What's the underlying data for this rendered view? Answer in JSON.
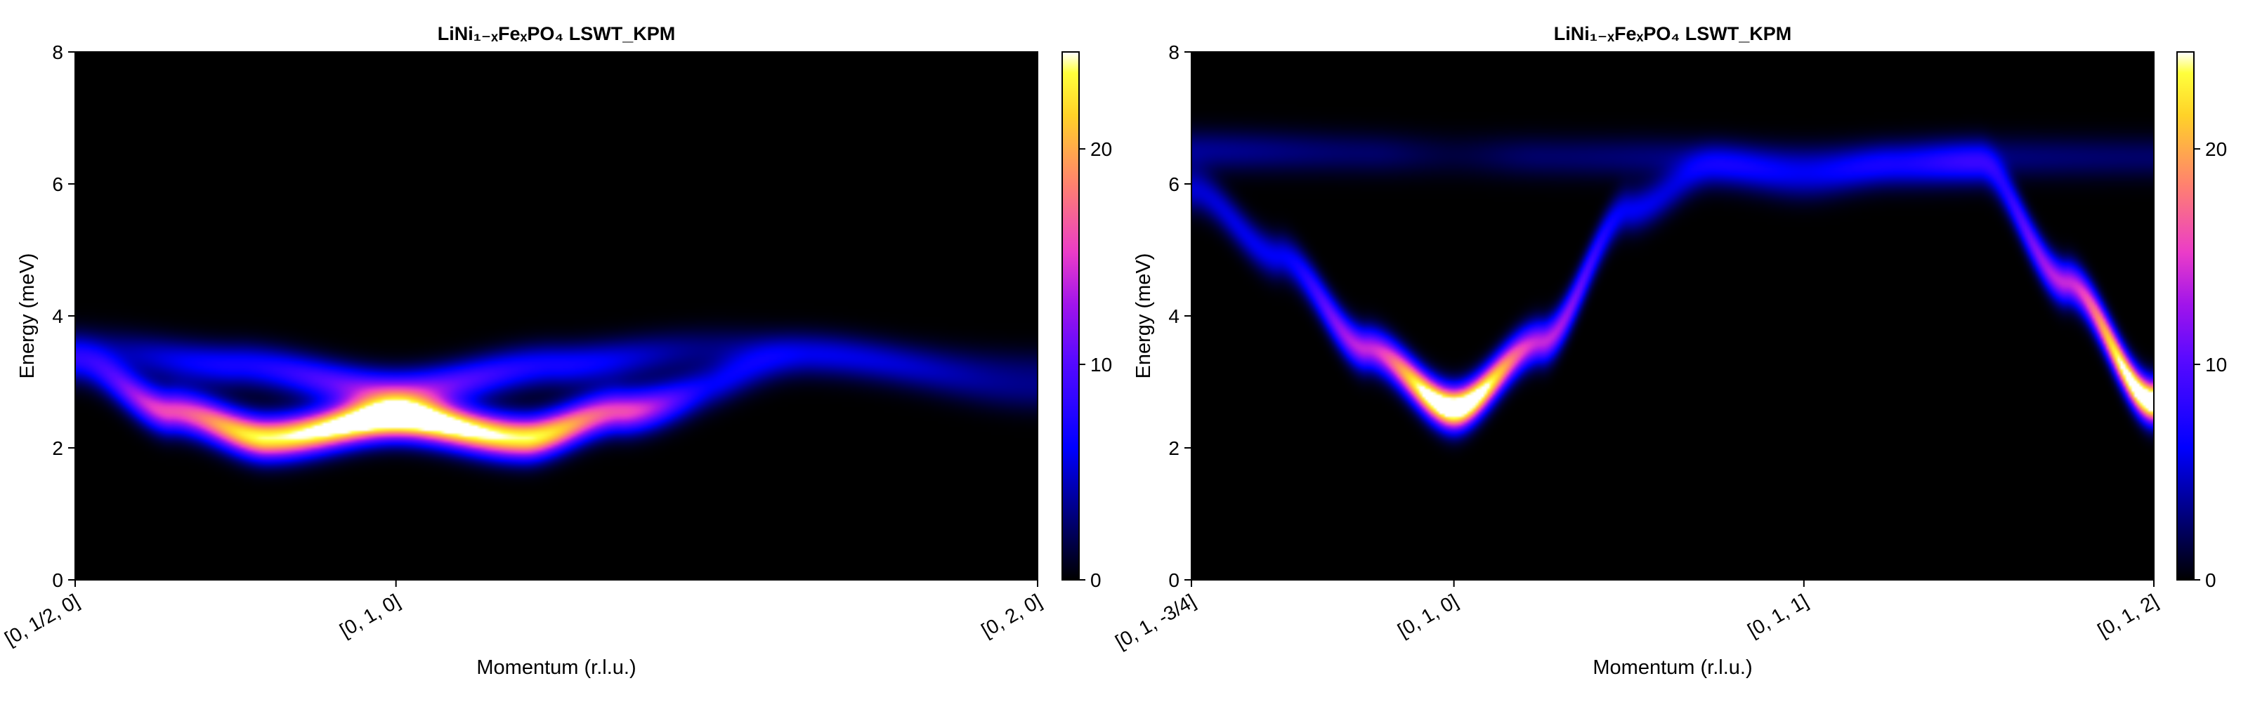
{
  "chart_data": [
    {
      "type": "heatmap",
      "title": "LiNi₁₋ₓFeₓPO₄ LSWT_KPM",
      "xlabel": "Momentum (r.l.u.)",
      "ylabel": "Energy (meV)",
      "xticks": [
        "[0, 1/2, 0]",
        "[0, 1, 0]",
        "[0, 2, 0]"
      ],
      "xtick_positions": [
        0,
        1,
        3
      ],
      "xlim": [
        0,
        3
      ],
      "ylim": [
        0,
        8
      ],
      "yticks": [
        0,
        2,
        4,
        6,
        8
      ],
      "colorbar": {
        "ticks": [
          0,
          10,
          20
        ],
        "range": [
          0,
          24.5
        ],
        "colormap": "gnuplot2"
      },
      "bands": [
        {
          "name": "lower",
          "energy_at_x": [
            [
              0,
              3.3
            ],
            [
              0.3,
              2.55
            ],
            [
              0.6,
              2.15
            ],
            [
              1.0,
              2.45
            ],
            [
              1.4,
              2.15
            ],
            [
              1.7,
              2.55
            ],
            [
              2.3,
              3.4
            ],
            [
              3.0,
              2.85
            ]
          ],
          "intensity_at_x": [
            [
              0,
              6
            ],
            [
              0.3,
              16
            ],
            [
              0.6,
              24
            ],
            [
              1.0,
              30
            ],
            [
              1.4,
              24
            ],
            [
              1.7,
              16
            ],
            [
              2.0,
              6
            ],
            [
              2.3,
              3
            ],
            [
              3.0,
              2.5
            ]
          ]
        },
        {
          "name": "upper",
          "energy_at_x": [
            [
              0,
              3.5
            ],
            [
              0.5,
              3.25
            ],
            [
              1.0,
              2.85
            ],
            [
              1.5,
              3.25
            ],
            [
              2.0,
              3.5
            ],
            [
              3.0,
              3.2
            ]
          ],
          "intensity_at_x": [
            [
              0,
              3
            ],
            [
              0.5,
              7
            ],
            [
              1.0,
              12
            ],
            [
              1.5,
              7
            ],
            [
              2.0,
              3
            ],
            [
              3.0,
              2
            ]
          ]
        }
      ]
    },
    {
      "type": "heatmap",
      "title": "LiNi₁₋ₓFeₓPO₄ LSWT_KPM",
      "xlabel": "Momentum (r.l.u.)",
      "ylabel": "Energy (meV)",
      "xticks": [
        "[0, 1, -3/4]",
        "[0, 1, 0]",
        "[0, 1, 1]",
        "[0, 1, 2]"
      ],
      "xtick_positions": [
        0,
        0.75,
        1.75,
        2.75
      ],
      "xlim": [
        0,
        2.75
      ],
      "ylim": [
        0,
        8
      ],
      "yticks": [
        0,
        2,
        4,
        6,
        8
      ],
      "colorbar": {
        "ticks": [
          0,
          10,
          20
        ],
        "range": [
          0,
          24.5
        ],
        "colormap": "gnuplot2"
      },
      "bands": [
        {
          "name": "dispersive",
          "energy_at_x": [
            [
              0,
              5.9
            ],
            [
              0.25,
              4.9
            ],
            [
              0.5,
              3.5
            ],
            [
              0.75,
              2.6
            ],
            [
              1.0,
              3.6
            ],
            [
              1.25,
              5.6
            ],
            [
              1.5,
              6.25
            ],
            [
              1.75,
              6.05
            ],
            [
              2.0,
              6.25
            ],
            [
              2.25,
              6.3
            ],
            [
              2.5,
              4.5
            ],
            [
              2.75,
              2.7
            ]
          ],
          "intensity_at_x": [
            [
              0,
              5
            ],
            [
              0.25,
              6
            ],
            [
              0.5,
              14
            ],
            [
              0.75,
              30
            ],
            [
              1.0,
              14
            ],
            [
              1.25,
              6
            ],
            [
              1.5,
              4
            ],
            [
              1.75,
              3.5
            ],
            [
              2.0,
              4
            ],
            [
              2.25,
              6
            ],
            [
              2.5,
              14
            ],
            [
              2.75,
              30
            ]
          ]
        },
        {
          "name": "flat",
          "energy_at_x": [
            [
              0,
              6.5
            ],
            [
              1.25,
              6.4
            ],
            [
              1.75,
              6.3
            ],
            [
              2.25,
              6.4
            ],
            [
              2.75,
              6.4
            ]
          ],
          "intensity_at_x": [
            [
              0,
              3.5
            ],
            [
              0.5,
              2.5
            ],
            [
              0.75,
              1.5
            ],
            [
              1.0,
              2.5
            ],
            [
              1.75,
              3.5
            ],
            [
              2.75,
              2.5
            ]
          ]
        }
      ]
    }
  ]
}
